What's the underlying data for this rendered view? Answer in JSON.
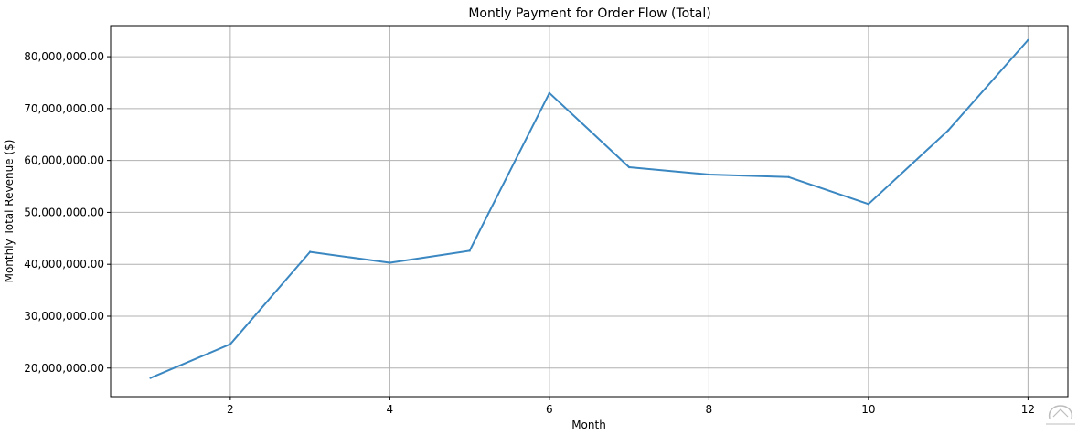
{
  "chart_data": {
    "type": "line",
    "title": "Montly Payment for Order Flow (Total)",
    "xlabel": "Month",
    "ylabel": "Monthly Total Revenue ($)",
    "xlim": [
      0.5,
      12.5
    ],
    "ylim": [
      14500000,
      86000000
    ],
    "xticks": [
      2,
      4,
      6,
      8,
      10,
      12
    ],
    "yticks": [
      20000000,
      30000000,
      40000000,
      50000000,
      60000000,
      70000000,
      80000000
    ],
    "ytick_labels": [
      "20,000,000.00",
      "30,000,000.00",
      "40,000,000.00",
      "50,000,000.00",
      "60,000,000.00",
      "70,000,000.00",
      "80,000,000.00"
    ],
    "grid": true,
    "x": [
      1,
      2,
      3,
      4,
      5,
      6,
      7,
      8,
      9,
      10,
      11,
      12
    ],
    "series": [
      {
        "color": "#3a87c1",
        "values": [
          18100000,
          24600000,
          42400000,
          40300000,
          42600000,
          73000000,
          58700000,
          57300000,
          56800000,
          51600000,
          65800000,
          83200000
        ]
      }
    ]
  },
  "watermark": {
    "icon": "logo-watermark-icon",
    "color": "#888888"
  }
}
